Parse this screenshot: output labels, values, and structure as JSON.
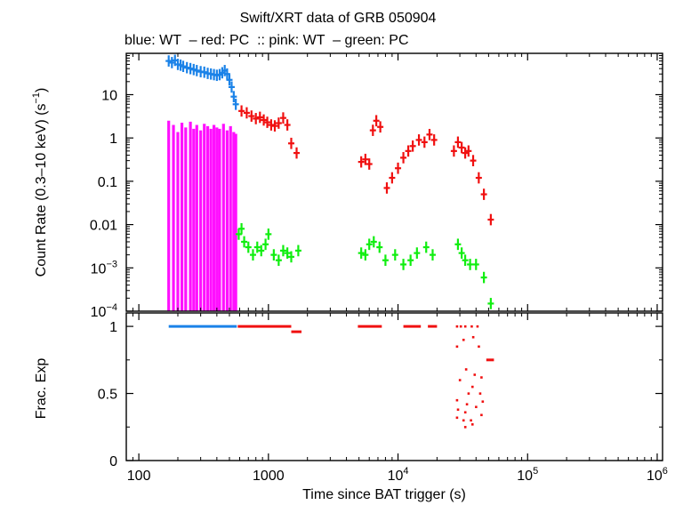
{
  "chart_data": {
    "type": "scatter",
    "title": "Swift/XRT data of GRB 050904",
    "subtitle": "blue: WT  – red: PC  :: pink: WT  – green: PC",
    "xlabel": "Time since BAT trigger (s)",
    "x_scale": "log",
    "xlim": [
      80,
      1100000
    ],
    "x_ticks": [
      {
        "value": 100,
        "label": "100"
      },
      {
        "value": 1000,
        "label": "1000"
      },
      {
        "value": 10000,
        "label": "10",
        "sup": "4"
      },
      {
        "value": 100000,
        "label": "10",
        "sup": "5"
      },
      {
        "value": 1000000,
        "label": "10",
        "sup": "6"
      }
    ],
    "panels": [
      {
        "name": "count-rate",
        "ylabel": "Count Rate (0.3–10 keV) (s",
        "ylabel_sup": "−1",
        "ylabel_tail": ")",
        "y_scale": "log",
        "ylim": [
          0.0001,
          90
        ],
        "y_ticks": [
          {
            "value": 10,
            "label": "10"
          },
          {
            "value": 1,
            "label": "1"
          },
          {
            "value": 0.1,
            "label": "0.1"
          },
          {
            "value": 0.01,
            "label": "0.01"
          },
          {
            "value": 0.001,
            "label": "10",
            "sup": "−3"
          },
          {
            "value": 0.0001,
            "label": "10",
            "sup": "−4"
          }
        ],
        "series": [
          {
            "color": "#1a82e8",
            "points": [
              [
                170,
                60
              ],
              [
                180,
                55
              ],
              [
                190,
                62
              ],
              [
                200,
                50
              ],
              [
                210,
                48
              ],
              [
                220,
                45
              ],
              [
                235,
                42
              ],
              [
                250,
                40
              ],
              [
                265,
                38
              ],
              [
                280,
                36
              ],
              [
                300,
                34
              ],
              [
                320,
                33
              ],
              [
                340,
                31
              ],
              [
                360,
                30
              ],
              [
                380,
                29
              ],
              [
                400,
                28
              ],
              [
                420,
                29
              ],
              [
                440,
                32
              ],
              [
                460,
                36
              ],
              [
                480,
                30
              ],
              [
                500,
                22
              ],
              [
                520,
                15
              ],
              [
                540,
                9
              ],
              [
                560,
                6
              ]
            ]
          },
          {
            "color": "#f01010",
            "points": [
              [
                620,
                4.2
              ],
              [
                680,
                3.8
              ],
              [
                740,
                3.2
              ],
              [
                800,
                2.8
              ],
              [
                860,
                3.0
              ],
              [
                920,
                2.6
              ],
              [
                980,
                2.3
              ],
              [
                1050,
                2.0
              ],
              [
                1120,
                1.9
              ],
              [
                1200,
                2.2
              ],
              [
                1300,
                2.9
              ],
              [
                1400,
                2.0
              ],
              [
                1500,
                0.75
              ],
              [
                1650,
                0.45
              ],
              [
                5200,
                0.28
              ],
              [
                5600,
                0.32
              ],
              [
                6000,
                0.25
              ],
              [
                6400,
                1.5
              ],
              [
                6800,
                2.5
              ],
              [
                7300,
                1.8
              ],
              [
                8200,
                0.07
              ],
              [
                9000,
                0.12
              ],
              [
                10000,
                0.2
              ],
              [
                11000,
                0.35
              ],
              [
                12000,
                0.5
              ],
              [
                13000,
                0.65
              ],
              [
                14500,
                0.9
              ],
              [
                16000,
                0.8
              ],
              [
                17500,
                1.2
              ],
              [
                19000,
                0.9
              ],
              [
                27000,
                0.5
              ],
              [
                29000,
                0.8
              ],
              [
                31000,
                0.6
              ],
              [
                33000,
                0.45
              ],
              [
                35000,
                0.5
              ],
              [
                38000,
                0.3
              ],
              [
                42000,
                0.12
              ],
              [
                46000,
                0.05
              ],
              [
                52000,
                0.013
              ]
            ]
          },
          {
            "color": "#ff10ff",
            "points": [
              [
                170,
                2.0
              ],
              [
                185,
                1.6
              ],
              [
                200,
                1.1
              ],
              [
                215,
                1.8
              ],
              [
                230,
                1.4
              ],
              [
                250,
                1.9
              ],
              [
                265,
                1.3
              ],
              [
                280,
                1.6
              ],
              [
                300,
                1.2
              ],
              [
                320,
                1.7
              ],
              [
                340,
                1.5
              ],
              [
                360,
                1.3
              ],
              [
                380,
                1.6
              ],
              [
                400,
                1.4
              ],
              [
                420,
                1.3
              ],
              [
                450,
                1.7
              ],
              [
                480,
                1.2
              ],
              [
                510,
                1.5
              ],
              [
                540,
                1.1
              ],
              [
                560,
                1.0
              ]
            ]
          },
          {
            "color": "#10ee10",
            "points": [
              [
                590,
                0.006
              ],
              [
                620,
                0.008
              ],
              [
                650,
                0.004
              ],
              [
                700,
                0.003
              ],
              [
                760,
                0.002
              ],
              [
                820,
                0.003
              ],
              [
                880,
                0.0025
              ],
              [
                950,
                0.0035
              ],
              [
                1000,
                0.006
              ],
              [
                1100,
                0.002
              ],
              [
                1200,
                0.0015
              ],
              [
                1300,
                0.0025
              ],
              [
                1400,
                0.0022
              ],
              [
                1500,
                0.0018
              ],
              [
                1700,
                0.0025
              ],
              [
                5200,
                0.0022
              ],
              [
                5600,
                0.002
              ],
              [
                6000,
                0.0035
              ],
              [
                6500,
                0.004
              ],
              [
                7200,
                0.003
              ],
              [
                8000,
                0.0015
              ],
              [
                9500,
                0.002
              ],
              [
                11000,
                0.0012
              ],
              [
                12500,
                0.0015
              ],
              [
                14000,
                0.0022
              ],
              [
                16500,
                0.003
              ],
              [
                18500,
                0.002
              ],
              [
                29000,
                0.0035
              ],
              [
                31000,
                0.0022
              ],
              [
                33000,
                0.0015
              ],
              [
                36000,
                0.0012
              ],
              [
                40000,
                0.0012
              ],
              [
                46000,
                0.0006
              ],
              [
                52000,
                0.00015
              ]
            ]
          }
        ]
      },
      {
        "name": "frac-exp",
        "ylabel": "Frac. Exp",
        "y_scale": "linear",
        "ylim": [
          0,
          1.1
        ],
        "y_ticks": [
          {
            "value": 0,
            "label": "0"
          },
          {
            "value": 0.5,
            "label": "0.5"
          },
          {
            "value": 1,
            "label": "1"
          }
        ],
        "segments": [
          {
            "color": "#1a82e8",
            "x0": 170,
            "x1": 570,
            "y": 1.0
          },
          {
            "color": "#f01010",
            "x0": 580,
            "x1": 1500,
            "y": 1.0
          },
          {
            "color": "#f01010",
            "x0": 1500,
            "x1": 1800,
            "y": 0.96
          },
          {
            "color": "#f01010",
            "x0": 4900,
            "x1": 7500,
            "y": 1.0
          },
          {
            "color": "#f01010",
            "x0": 11000,
            "x1": 15000,
            "y": 1.0
          },
          {
            "color": "#f01010",
            "x0": 17000,
            "x1": 20000,
            "y": 1.0
          },
          {
            "color": "#f01010",
            "x0": 48000,
            "x1": 55000,
            "y": 0.75
          }
        ],
        "points": [
          {
            "color": "#f01010",
            "values": [
              [
                28500,
                1.0
              ],
              [
                30500,
                1.0
              ],
              [
                33000,
                1.0
              ],
              [
                37000,
                1.0
              ],
              [
                41000,
                1.0
              ],
              [
                28500,
                0.85
              ],
              [
                30000,
                0.6
              ],
              [
                28500,
                0.45
              ],
              [
                29000,
                0.38
              ],
              [
                28500,
                0.32
              ],
              [
                32000,
                0.9
              ],
              [
                33500,
                0.68
              ],
              [
                35000,
                0.5
              ],
              [
                34000,
                0.42
              ],
              [
                33000,
                0.36
              ],
              [
                32000,
                0.3
              ],
              [
                33000,
                0.25
              ],
              [
                38000,
                0.92
              ],
              [
                39000,
                0.64
              ],
              [
                37500,
                0.55
              ],
              [
                40000,
                0.4
              ],
              [
                36500,
                0.3
              ],
              [
                37500,
                0.27
              ],
              [
                42000,
                0.85
              ],
              [
                44000,
                0.62
              ],
              [
                43000,
                0.5
              ],
              [
                45000,
                0.44
              ],
              [
                44000,
                0.34
              ]
            ]
          }
        ]
      }
    ]
  }
}
